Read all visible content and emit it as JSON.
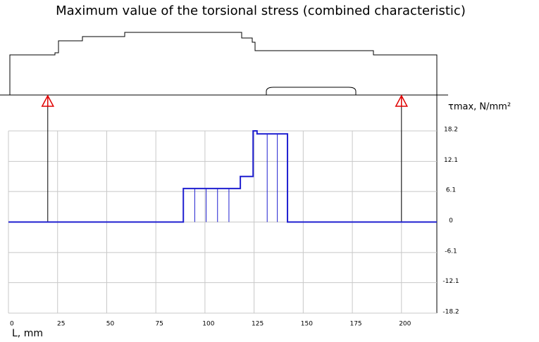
{
  "chart_data": {
    "type": "line",
    "title": "Maximum value of the torsional stress (combined characteristic)",
    "x_label": "L, mm",
    "y_label": "τmax, N/mm²",
    "xlim": [
      0,
      218
    ],
    "ylim": [
      -18.2,
      18.2
    ],
    "xticks": [
      0,
      25,
      50,
      75,
      100,
      125,
      150,
      175,
      200
    ],
    "yticks": [
      18.2,
      12.1,
      6.1,
      0.0,
      -6.1,
      -12.1,
      -18.2
    ],
    "grid": true,
    "supports": [
      20,
      200
    ],
    "series": [
      {
        "color": "#1f1fd0",
        "x": [
          0,
          89,
          89,
          118,
          118,
          124.5,
          124.5,
          126.5,
          126.5,
          142,
          142,
          218
        ],
        "values": [
          0,
          0,
          6.7,
          6.7,
          9.1,
          9.1,
          18.2,
          18.2,
          17.6,
          17.6,
          0,
          0
        ]
      }
    ]
  }
}
